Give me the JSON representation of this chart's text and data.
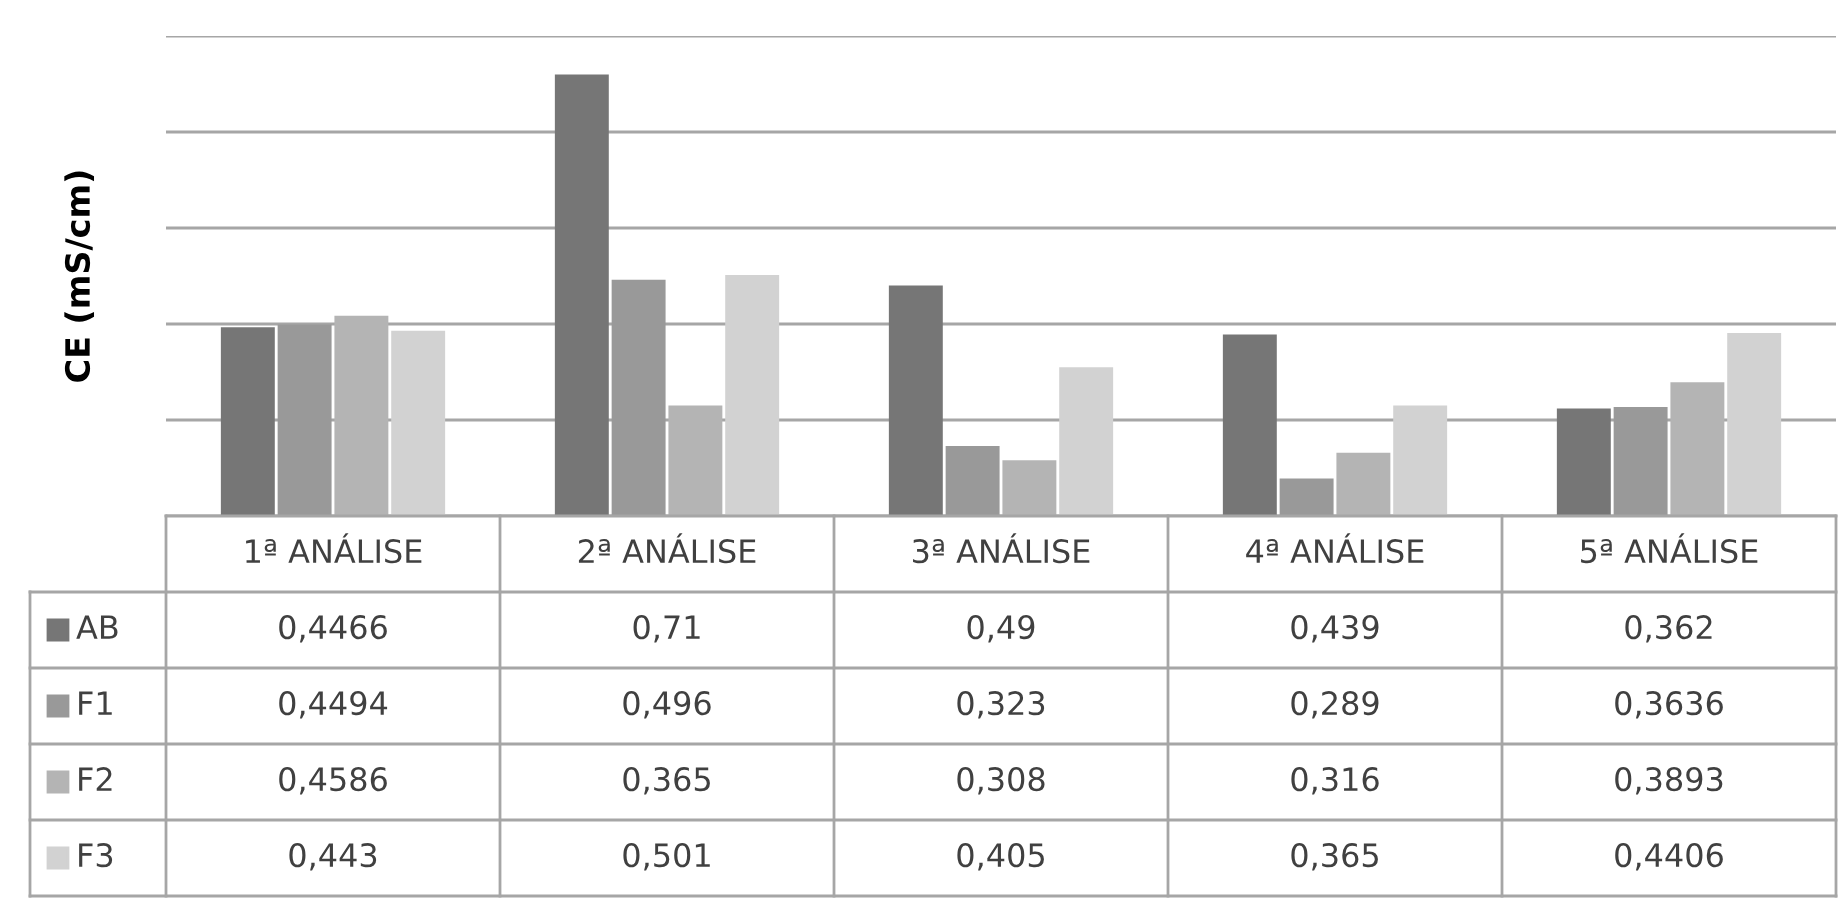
{
  "chart_data": {
    "type": "bar",
    "ylabel": "CE (mS/cm)",
    "categories": [
      "1ª ANÁLISE",
      "2ª ANÁLISE",
      "3ª ANÁLISE",
      "4ª ANÁLISE",
      "5ª ANÁLISE"
    ],
    "series": [
      {
        "name": "AB",
        "color": "#767676",
        "values": [
          0.4466,
          0.71,
          0.49,
          0.439,
          0.362
        ],
        "value_labels": [
          "0,4466",
          "0,71",
          "0,49",
          "0,439",
          "0,362"
        ]
      },
      {
        "name": "F1",
        "color": "#999999",
        "values": [
          0.4494,
          0.496,
          0.323,
          0.289,
          0.3636
        ],
        "value_labels": [
          "0,4494",
          "0,496",
          "0,323",
          "0,289",
          "0,3636"
        ]
      },
      {
        "name": "F2",
        "color": "#b4b4b4",
        "values": [
          0.4586,
          0.365,
          0.308,
          0.316,
          0.3893
        ],
        "value_labels": [
          "0,4586",
          "0,365",
          "0,308",
          "0,316",
          "0,3893"
        ]
      },
      {
        "name": "F3",
        "color": "#d2d2d2",
        "values": [
          0.443,
          0.501,
          0.405,
          0.365,
          0.4406
        ],
        "value_labels": [
          "0,443",
          "0,501",
          "0,405",
          "0,365",
          "0,4406"
        ]
      }
    ],
    "ylim": [
      0.25,
      0.75
    ],
    "yticks": [
      {
        "value": 0.25,
        "label": null
      },
      {
        "value": 0.35,
        "label": null
      },
      {
        "value": 0.45,
        "label": null
      },
      {
        "value": 0.55,
        "label": null
      },
      {
        "value": 0.65,
        "label": null
      },
      {
        "value": 0.75,
        "label": null
      }
    ],
    "grid": "y",
    "tick_labels": "x",
    "legend": "bottom left"
  }
}
